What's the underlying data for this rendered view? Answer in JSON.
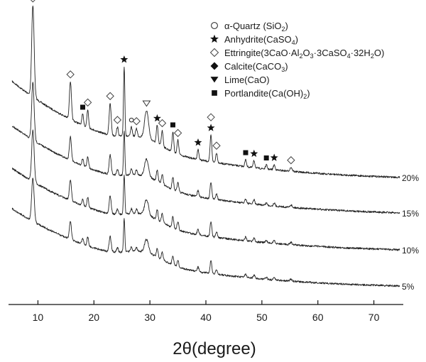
{
  "chart_data": {
    "type": "line",
    "xlabel": "2θ(degree)",
    "ylabel": "",
    "title": "",
    "xlim": [
      5,
      75
    ],
    "x_ticks": [
      "10",
      "20",
      "30",
      "40",
      "50",
      "60",
      "70"
    ],
    "y_ticks_visible": false,
    "legend_placement": "top-right",
    "legend": [
      {
        "marker": "open-circle",
        "text": [
          "α-Quartz (SiO",
          "2",
          ")"
        ]
      },
      {
        "marker": "filled-star",
        "text": [
          "Anhydrite(CaSO",
          "4",
          ")"
        ]
      },
      {
        "marker": "open-diamond",
        "text": [
          "Ettringite(3CaO·Al",
          "2",
          "O",
          "3",
          "·3CaSO",
          "4",
          "·32H",
          "2",
          "O)"
        ]
      },
      {
        "marker": "filled-diamond",
        "text": [
          "Calcite(CaCO",
          "3",
          ")"
        ]
      },
      {
        "marker": "filled-triangle-down",
        "text": [
          "Lime(CaO)"
        ]
      },
      {
        "marker": "filled-square",
        "text": [
          "Portlandite(Ca(OH)",
          "2",
          ")"
        ]
      }
    ],
    "series": [
      {
        "name": "20%",
        "baseline_end": 1.0,
        "peak_scale": 1.0
      },
      {
        "name": "15%",
        "baseline_end": 0.7,
        "peak_scale": 0.8
      },
      {
        "name": "10%",
        "baseline_end": 0.4,
        "peak_scale": 0.75
      },
      {
        "name": "5%",
        "baseline_end": 0.1,
        "peak_scale": 0.7
      }
    ],
    "peaks": [
      {
        "x": 9.1,
        "h": 4.6,
        "w": 0.22
      },
      {
        "x": 15.8,
        "h": 1.9,
        "w": 0.18
      },
      {
        "x": 18.0,
        "h": 0.55,
        "w": 0.15
      },
      {
        "x": 18.9,
        "h": 0.9,
        "w": 0.15
      },
      {
        "x": 22.9,
        "h": 1.6,
        "w": 0.18
      },
      {
        "x": 24.2,
        "h": 0.45,
        "w": 0.15
      },
      {
        "x": 25.4,
        "h": 3.5,
        "w": 0.12
      },
      {
        "x": 26.7,
        "h": 0.45,
        "w": 0.15
      },
      {
        "x": 27.6,
        "h": 0.4,
        "w": 0.15
      },
      {
        "x": 29.4,
        "h": 1.4,
        "w": 0.35
      },
      {
        "x": 31.3,
        "h": 0.9,
        "w": 0.15
      },
      {
        "x": 32.2,
        "h": 0.8,
        "w": 0.15
      },
      {
        "x": 34.1,
        "h": 1.0,
        "w": 0.15
      },
      {
        "x": 35.0,
        "h": 0.7,
        "w": 0.15
      },
      {
        "x": 38.6,
        "h": 0.5,
        "w": 0.15
      },
      {
        "x": 40.9,
        "h": 1.35,
        "w": 0.15
      },
      {
        "x": 41.9,
        "h": 0.5,
        "w": 0.15
      },
      {
        "x": 47.1,
        "h": 0.35,
        "w": 0.15
      },
      {
        "x": 48.6,
        "h": 0.35,
        "w": 0.15
      },
      {
        "x": 50.8,
        "h": 0.2,
        "w": 0.15
      },
      {
        "x": 52.2,
        "h": 0.25,
        "w": 0.15
      },
      {
        "x": 55.2,
        "h": 0.2,
        "w": 0.2
      }
    ],
    "phase_markers": [
      {
        "x": 9.1,
        "symbol": "open-diamond"
      },
      {
        "x": 15.8,
        "symbol": "open-diamond"
      },
      {
        "x": 18.0,
        "symbol": "filled-square"
      },
      {
        "x": 18.9,
        "symbol": "open-diamond"
      },
      {
        "x": 22.9,
        "symbol": "open-diamond"
      },
      {
        "x": 24.2,
        "symbol": "open-diamond"
      },
      {
        "x": 25.4,
        "symbol": "filled-star"
      },
      {
        "x": 26.7,
        "symbol": "open-circle"
      },
      {
        "x": 27.6,
        "symbol": "open-diamond"
      },
      {
        "x": 29.4,
        "symbol": "open-triangle-down"
      },
      {
        "x": 31.3,
        "symbol": "filled-star"
      },
      {
        "x": 32.2,
        "symbol": "open-diamond"
      },
      {
        "x": 34.1,
        "symbol": "filled-square"
      },
      {
        "x": 35.0,
        "symbol": "open-diamond"
      },
      {
        "x": 38.6,
        "symbol": "filled-star"
      },
      {
        "x": 40.9,
        "symbol": "filled-star"
      },
      {
        "x": 40.9,
        "symbol": "open-diamond"
      },
      {
        "x": 41.9,
        "symbol": "open-diamond"
      },
      {
        "x": 47.1,
        "symbol": "filled-square"
      },
      {
        "x": 48.6,
        "symbol": "filled-star"
      },
      {
        "x": 50.8,
        "symbol": "filled-square"
      },
      {
        "x": 52.2,
        "symbol": "filled-star"
      },
      {
        "x": 55.2,
        "symbol": "open-diamond"
      }
    ]
  }
}
